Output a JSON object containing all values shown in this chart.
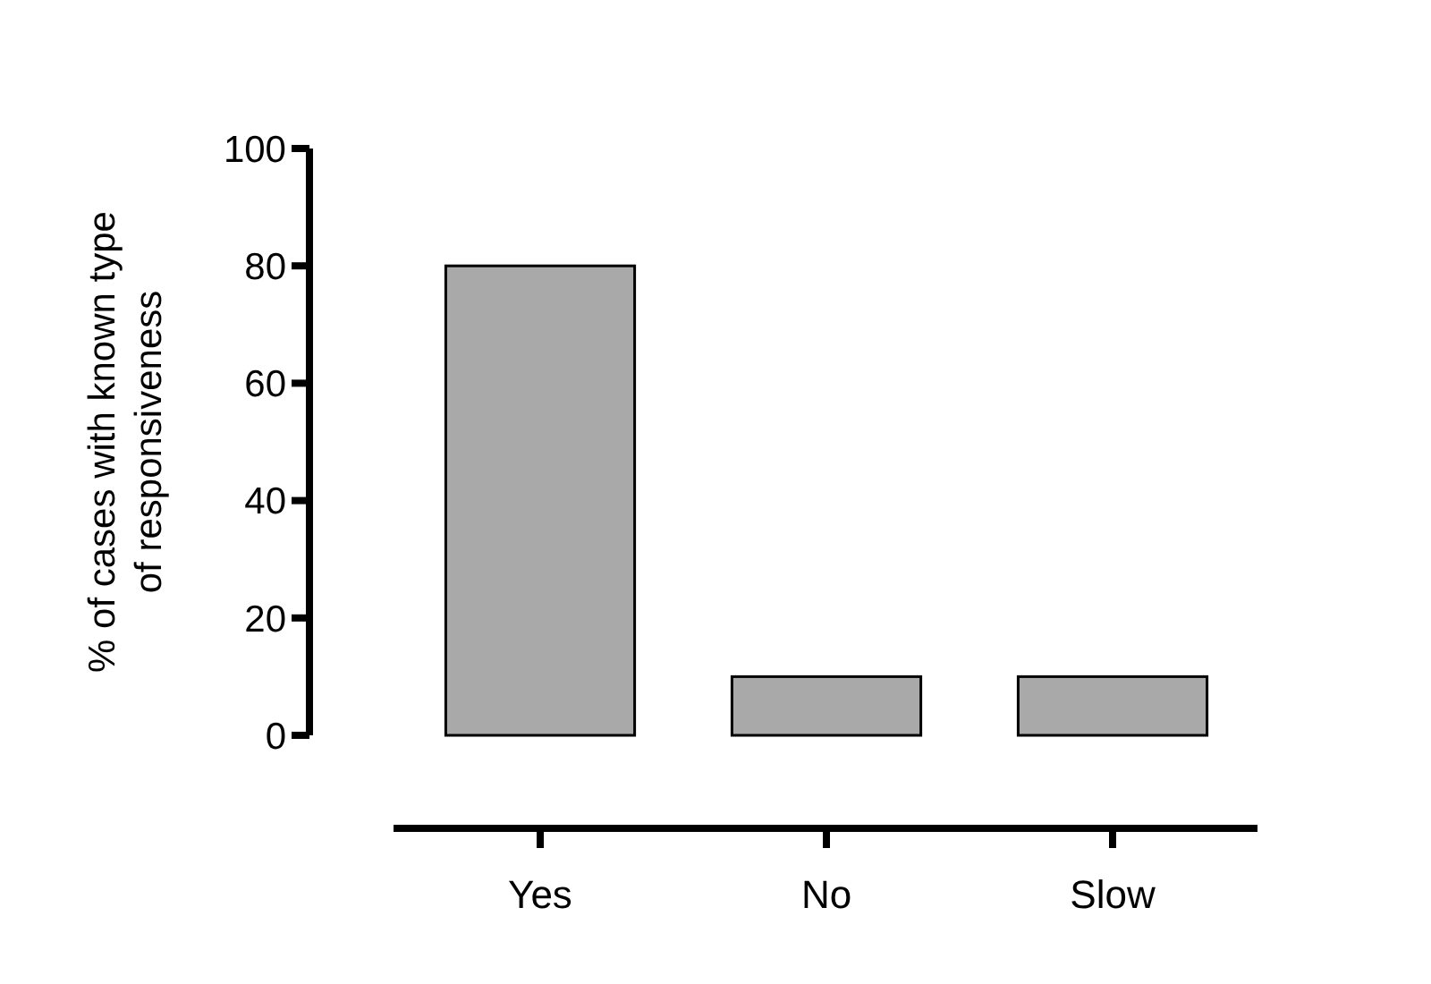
{
  "chart_data": {
    "type": "bar",
    "ylabel": "% of cases with known type\nof responsiveness",
    "categories": [
      "Yes",
      "No",
      "Slow"
    ],
    "values": [
      80,
      10,
      10
    ],
    "color": "#a9a9a9",
    "ylim": [
      0,
      100
    ],
    "yticks": [
      0,
      20,
      40,
      60,
      80,
      100
    ],
    "grid": false
  }
}
